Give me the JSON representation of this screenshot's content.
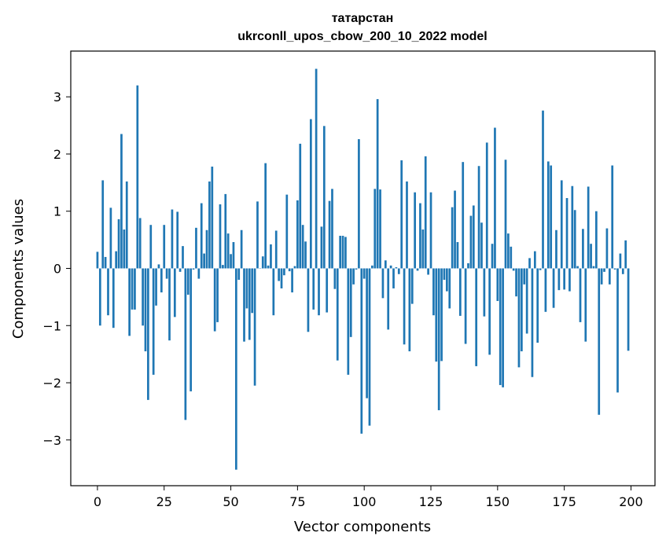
{
  "chart_data": {
    "type": "bar",
    "title_line1": "татарстан",
    "title_line2": "ukrconll_upos_cbow_200_10_2022 model",
    "xlabel": "Vector components",
    "ylabel": "Components values",
    "xlim": [
      -10,
      209
    ],
    "ylim": [
      -3.8,
      3.8
    ],
    "x_ticks": [
      0,
      25,
      50,
      75,
      100,
      125,
      150,
      175,
      200
    ],
    "x_tick_labels": [
      "0",
      "25",
      "50",
      "75",
      "100",
      "125",
      "150",
      "175",
      "200"
    ],
    "y_ticks": [
      -3,
      -2,
      -1,
      0,
      1,
      2,
      3
    ],
    "y_tick_labels": [
      "−3",
      "−2",
      "−1",
      "0",
      "1",
      "2",
      "3"
    ],
    "bar_color": "#1f77b4",
    "values": [
      0.29,
      -1.0,
      1.54,
      0.2,
      -0.82,
      1.06,
      -1.04,
      0.3,
      0.86,
      2.35,
      0.68,
      1.52,
      -1.18,
      -0.72,
      -0.72,
      3.2,
      0.88,
      -1.0,
      -1.45,
      -2.3,
      0.76,
      -1.86,
      -0.65,
      0.07,
      -0.42,
      0.76,
      -0.18,
      -1.26,
      1.03,
      -0.85,
      0.99,
      -0.06,
      0.39,
      -2.65,
      -0.46,
      -2.15,
      -0.02,
      0.71,
      -0.18,
      1.14,
      0.26,
      0.67,
      1.52,
      1.78,
      -1.1,
      -0.94,
      1.12,
      0.06,
      1.3,
      0.61,
      0.25,
      0.46,
      -3.52,
      -0.2,
      0.67,
      -1.28,
      -0.7,
      -1.25,
      -0.78,
      -2.05,
      1.17,
      0.0,
      0.21,
      1.84,
      0.05,
      0.42,
      -0.82,
      0.66,
      -0.22,
      -0.35,
      -0.12,
      1.29,
      -0.05,
      -0.42,
      0.04,
      1.19,
      2.18,
      0.76,
      0.47,
      -1.11,
      2.61,
      -0.72,
      3.49,
      -0.82,
      0.73,
      2.49,
      -0.77,
      1.18,
      1.39,
      -0.36,
      -1.61,
      0.57,
      0.57,
      0.55,
      -1.86,
      -1.2,
      -0.28,
      -0.02,
      2.26,
      -2.89,
      -0.18,
      -2.27,
      -2.75,
      0.05,
      1.39,
      2.96,
      1.38,
      -0.52,
      0.14,
      -1.07,
      0.05,
      -0.35,
      0.02,
      -0.1,
      1.89,
      -1.33,
      1.52,
      -1.45,
      -0.62,
      1.33,
      -0.04,
      1.14,
      0.68,
      1.96,
      -0.11,
      1.33,
      -0.82,
      -1.63,
      -2.48,
      -1.62,
      -0.2,
      -0.4,
      -0.7,
      1.07,
      1.36,
      0.46,
      -0.83,
      1.86,
      -1.32,
      0.09,
      0.92,
      1.1,
      -1.71,
      1.79,
      0.8,
      -0.84,
      2.2,
      -1.51,
      0.43,
      2.46,
      -0.57,
      -2.04,
      -2.08,
      1.9,
      0.61,
      0.38,
      -0.04,
      -0.49,
      -1.73,
      -1.45,
      -0.28,
      -1.14,
      0.18,
      -1.9,
      0.3,
      -1.3,
      -0.03,
      2.76,
      -0.76,
      1.87,
      1.8,
      -0.69,
      0.67,
      -0.38,
      1.54,
      -0.37,
      1.23,
      -0.4,
      1.44,
      1.02,
      0.04,
      -0.94,
      0.69,
      -1.28,
      1.43,
      0.43,
      0.04,
      1.0,
      -2.56,
      -0.28,
      -0.06,
      0.7,
      -0.28,
      1.8,
      -0.02,
      -2.17,
      0.26,
      -0.1,
      0.49,
      -1.44
    ]
  }
}
